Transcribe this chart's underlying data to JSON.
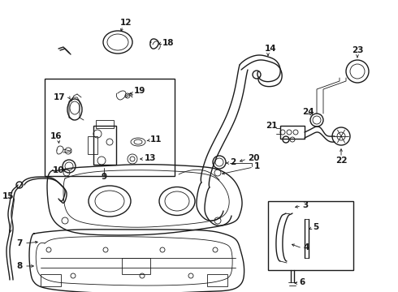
{
  "background_color": "#ffffff",
  "line_color": "#1a1a1a",
  "lw": 1.0,
  "tlw": 0.6,
  "fs": 7.5,
  "figw": 4.9,
  "figh": 3.6,
  "dpi": 100
}
